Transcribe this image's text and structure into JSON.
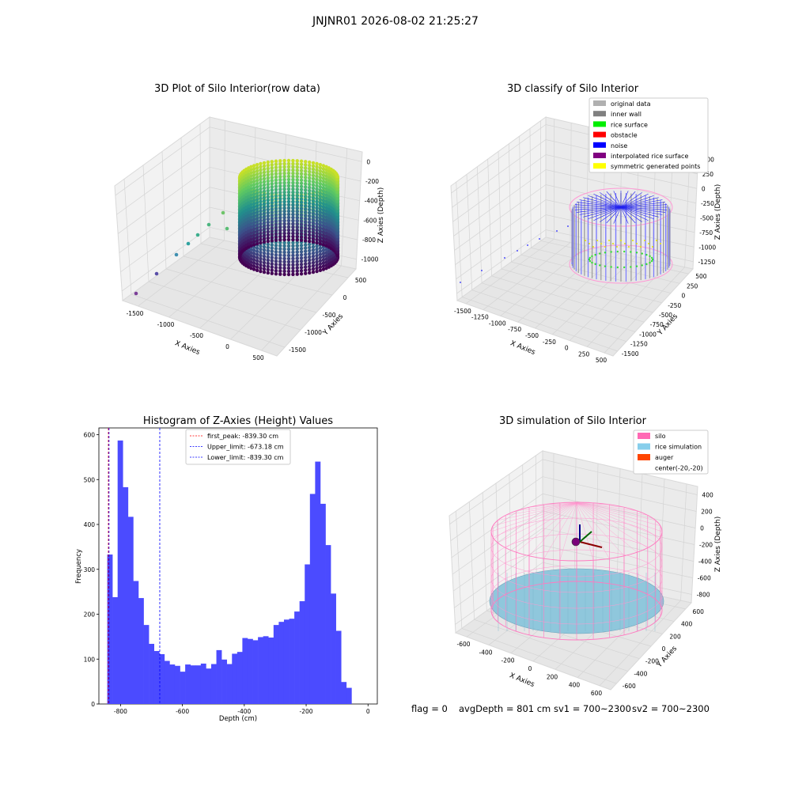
{
  "suptitle": "JNJNR01 2026-08-02 21:25:27",
  "footer": {
    "flag": "flag = 0",
    "avg": "avgDepth = 801 cm",
    "sv1": "sv1 = 700~2300",
    "sv2": "sv2 = 700~2300"
  },
  "panels": {
    "raw": {
      "title": "3D Plot of Silo Interior(row data)",
      "xlabel": "X Axies",
      "ylabel": "Y Axies",
      "zlabel": "Z Axies (Depth)",
      "xticks": [
        "-1500",
        "-1000",
        "-500",
        "0",
        "500"
      ],
      "yticks": [
        "500",
        "0",
        "-500",
        "-1000",
        "-1500"
      ],
      "zticks": [
        "0",
        "-200",
        "-400",
        "-600",
        "-800",
        "-1000"
      ]
    },
    "classify": {
      "title": "3D classify of Silo Interior",
      "xlabel": "X Axies",
      "ylabel": "Y Axies",
      "zlabel": "Z Axies (Depth)",
      "xticks": [
        "-1500",
        "-1250",
        "-1000",
        "-750",
        "-500",
        "-250",
        "0",
        "250",
        "500"
      ],
      "yticks": [
        "500",
        "250",
        "0",
        "-250",
        "-500",
        "-750",
        "-1000",
        "-1250",
        "-1500"
      ],
      "zticks": [
        "500",
        "250",
        "0",
        "-250",
        "-500",
        "-750",
        "-1000",
        "-1250"
      ],
      "legend": [
        {
          "label": "original data",
          "color": "#b0b0b0"
        },
        {
          "label": "inner wall",
          "color": "#808080"
        },
        {
          "label": "rice surface",
          "color": "#00ee00"
        },
        {
          "label": "obstacle",
          "color": "#ff0000"
        },
        {
          "label": "noise",
          "color": "#0000ff"
        },
        {
          "label": "interpolated rice surface",
          "color": "#800080"
        },
        {
          "label": "symmetric generated points",
          "color": "#ffff00"
        }
      ]
    },
    "simulation": {
      "title": "3D simulation of Silo Interior",
      "xlabel": "X Axies",
      "ylabel": "Y Axies",
      "zlabel": "Z Axies (Depth)",
      "xticks": [
        "-600",
        "-400",
        "-200",
        "0",
        "200",
        "400",
        "600"
      ],
      "yticks": [
        "600",
        "400",
        "200",
        "0",
        "-200",
        "-400",
        "-600"
      ],
      "zticks": [
        "400",
        "200",
        "0",
        "-200",
        "-400",
        "-600",
        "-800"
      ],
      "legend": [
        {
          "label": "silo",
          "color": "#ff69b4"
        },
        {
          "label": "rice simulation",
          "color": "#87ceeb"
        },
        {
          "label": "auger",
          "color": "#ff4500"
        },
        {
          "label": "center(-20,-20)",
          "color": "none"
        }
      ]
    }
  },
  "chart_data": {
    "type": "bar",
    "title": "Histogram of Z-Axies (Height) Values",
    "xlabel": "Depth (cm)",
    "ylabel": "Frequency",
    "xlim": [
      -870,
      30
    ],
    "ylim": [
      0,
      615
    ],
    "xticks": [
      -800,
      -600,
      -400,
      -200,
      0
    ],
    "yticks": [
      0,
      100,
      200,
      300,
      400,
      500,
      600
    ],
    "bar_color": "#4b4bff",
    "bins_start": -843,
    "bin_width": 16.8,
    "values": [
      333,
      238,
      587,
      483,
      417,
      274,
      236,
      176,
      134,
      118,
      111,
      96,
      88,
      85,
      72,
      88,
      86,
      86,
      90,
      79,
      89,
      120,
      99,
      89,
      112,
      116,
      147,
      145,
      142,
      149,
      151,
      148,
      176,
      183,
      188,
      190,
      206,
      229,
      311,
      468,
      540,
      446,
      354,
      246,
      163,
      49,
      36
    ],
    "vlines": [
      {
        "label": "first_peak: -839.30 cm",
        "x": -839.3,
        "color": "#ff0000"
      },
      {
        "label": "Upper_limit: -673.18 cm",
        "x": -673.18,
        "color": "#0000ff"
      },
      {
        "label": "Lower_limit: -839.30 cm",
        "x": -839.3,
        "color": "#0000ff"
      }
    ]
  }
}
